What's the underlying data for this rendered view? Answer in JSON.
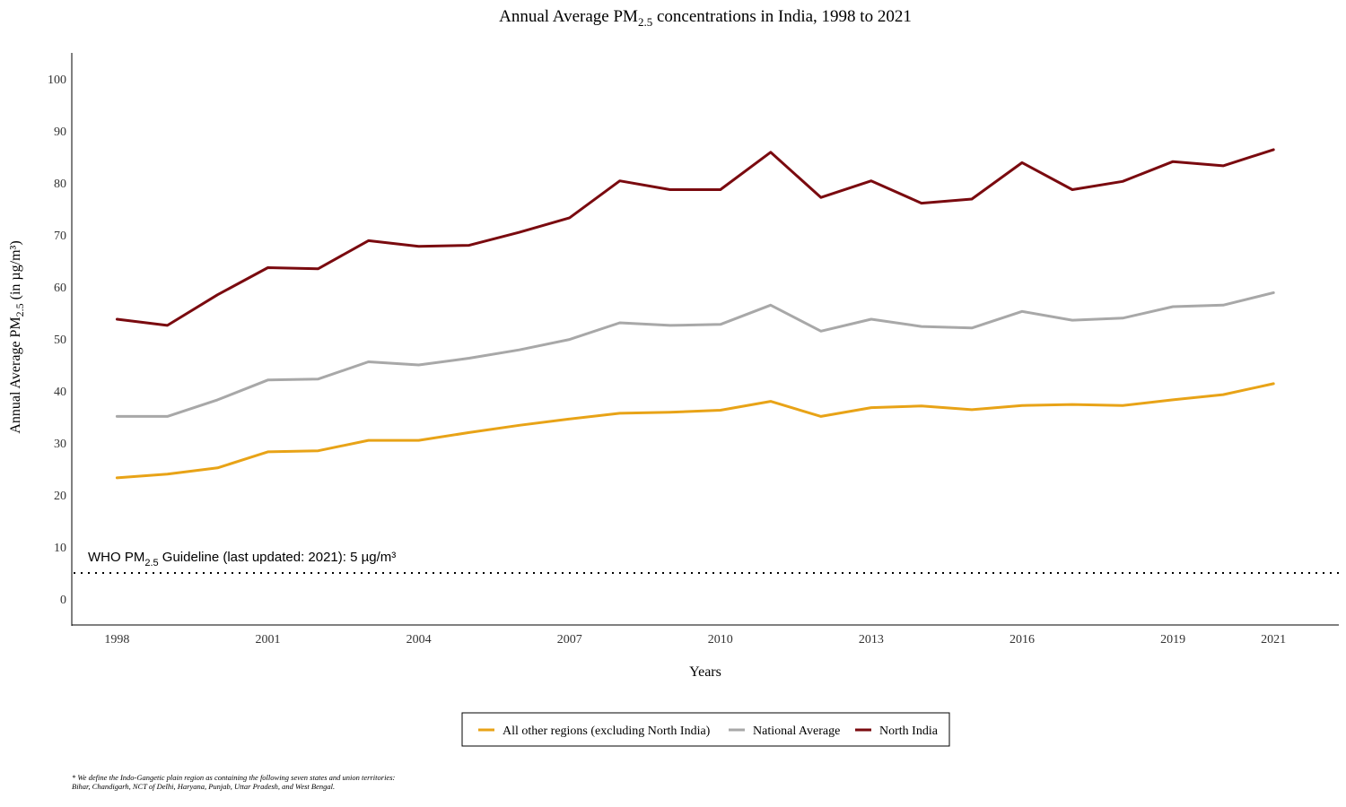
{
  "chart_data": {
    "type": "line",
    "title_prefix": "Annual Average PM",
    "title_sub": "2.5",
    "title_suffix": " concentrations in India, 1998 to 2021",
    "xlabel": "Years",
    "ylabel_prefix": "Annual Average PM",
    "ylabel_sub": "2.5",
    "ylabel_suffix": " (in µg/m³)",
    "xlim": [
      1997.1,
      2022.3
    ],
    "ylim": [
      -5,
      105
    ],
    "x_ticks": [
      1998,
      2001,
      2004,
      2007,
      2010,
      2013,
      2016,
      2019,
      2021
    ],
    "y_ticks": [
      0,
      10,
      20,
      30,
      40,
      50,
      60,
      70,
      80,
      90,
      100
    ],
    "x": [
      1998,
      1999,
      2000,
      2001,
      2002,
      2003,
      2004,
      2005,
      2006,
      2007,
      2008,
      2009,
      2010,
      2011,
      2012,
      2013,
      2014,
      2015,
      2016,
      2017,
      2018,
      2019,
      2020,
      2021
    ],
    "series": [
      {
        "name": "All other regions (excluding North India)",
        "color": "#E8A317",
        "values": [
          23.3,
          24.0,
          25.2,
          28.3,
          28.5,
          30.5,
          30.5,
          32.0,
          33.4,
          34.6,
          35.7,
          35.9,
          36.3,
          38.0,
          35.1,
          36.8,
          37.1,
          36.4,
          37.2,
          37.4,
          37.2,
          38.3,
          39.3,
          41.4
        ]
      },
      {
        "name": "National Average",
        "color": "#A8A8A8",
        "values": [
          35.1,
          35.1,
          38.3,
          42.1,
          42.3,
          45.6,
          45.0,
          46.3,
          47.9,
          49.9,
          53.1,
          52.6,
          52.8,
          56.5,
          51.5,
          53.8,
          52.4,
          52.1,
          55.3,
          53.6,
          54.0,
          56.2,
          56.5,
          58.9
        ]
      },
      {
        "name": "North India",
        "color": "#7A0A0F",
        "values": [
          53.8,
          52.6,
          58.5,
          63.7,
          63.5,
          68.9,
          67.8,
          68.0,
          70.5,
          73.3,
          80.4,
          78.7,
          78.7,
          85.9,
          77.2,
          80.4,
          76.1,
          76.9,
          83.9,
          78.7,
          80.3,
          84.1,
          83.3,
          86.4
        ]
      }
    ],
    "guideline": {
      "value": 5,
      "label_prefix": "WHO PM",
      "label_sub": "2.5",
      "label_suffix": " Guideline (last updated: 2021): 5 µg/m³"
    },
    "legend": {
      "placement": "bottom-center"
    },
    "grid": false
  },
  "footnote": "* We define the Indo-Gangetic plain region as containing the following seven states and union territories: Bihar, Chandigarh, NCT of Delhi, Haryana, Punjab, Uttar Pradesh, and West Bengal."
}
